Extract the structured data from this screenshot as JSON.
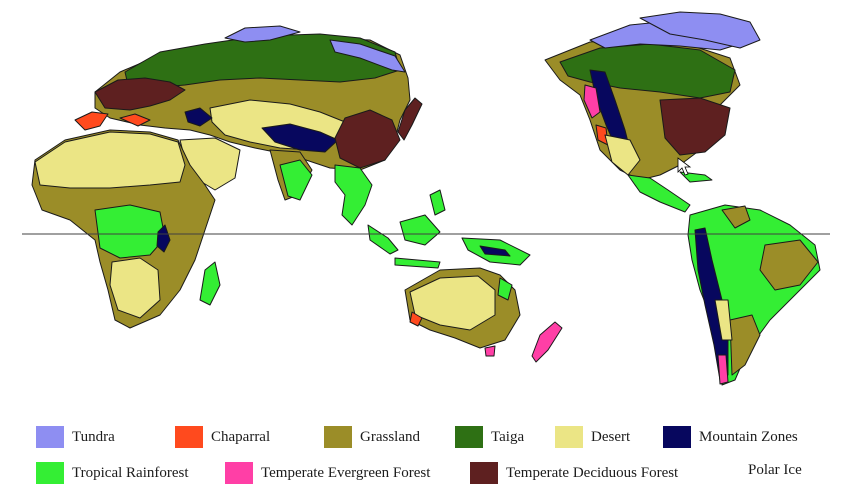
{
  "map": {
    "colors": {
      "tundra": "#8e8ef2",
      "chaparral": "#ff4a1e",
      "grassland": "#9b8d28",
      "taiga": "#2e7014",
      "desert": "#ebe585",
      "mountain": "#07075e",
      "rainforest": "#34ee34",
      "evergreen": "#ff3fa6",
      "deciduous": "#5e2020",
      "outline": "#1a1a1a"
    }
  },
  "legend": {
    "items": [
      {
        "id": "tundra",
        "label": "Tundra",
        "color": "#8e8ef2"
      },
      {
        "id": "chaparral",
        "label": "Chaparral",
        "color": "#ff4a1e"
      },
      {
        "id": "grassland",
        "label": "Grassland",
        "color": "#9b8d28"
      },
      {
        "id": "taiga",
        "label": "Taiga",
        "color": "#2e7014"
      },
      {
        "id": "desert",
        "label": "Desert",
        "color": "#ebe585"
      },
      {
        "id": "mountain",
        "label": "Mountain Zones",
        "color": "#07075e"
      },
      {
        "id": "rainforest",
        "label": "Tropical Rainforest",
        "color": "#34ee34"
      },
      {
        "id": "evergreen",
        "label": "Temperate Evergreen Forest",
        "color": "#ff3fa6"
      },
      {
        "id": "deciduous",
        "label": "Temperate Deciduous Forest",
        "color": "#5e2020"
      },
      {
        "id": "polar",
        "label": "Polar Ice",
        "color": "#ffffff"
      }
    ]
  }
}
